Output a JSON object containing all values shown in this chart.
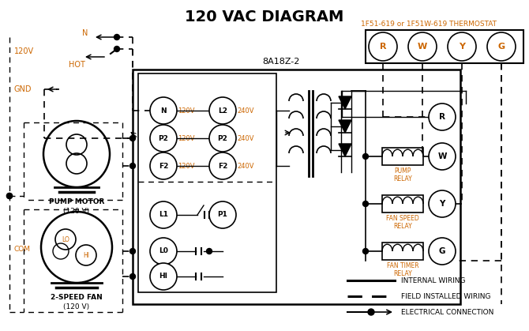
{
  "title": "120 VAC DIAGRAM",
  "title_color": "#000000",
  "title_fontsize": 14,
  "thermostat_label": "1F51-619 or 1F51W-619 THERMOSTAT",
  "thermostat_color": "#cc6600",
  "box_label": "8A18Z-2",
  "terminal_labels": [
    "R",
    "W",
    "Y",
    "G"
  ],
  "bg_color": "#ffffff",
  "line_color": "#000000",
  "accent_color": "#cc6600",
  "legend": [
    {
      "label": "INTERNAL WIRING",
      "style": "solid"
    },
    {
      "label": "FIELD INSTALLED WIRING",
      "style": "dashed"
    },
    {
      "label": "ELECTRICAL CONNECTION",
      "style": "dot_arrow"
    }
  ]
}
